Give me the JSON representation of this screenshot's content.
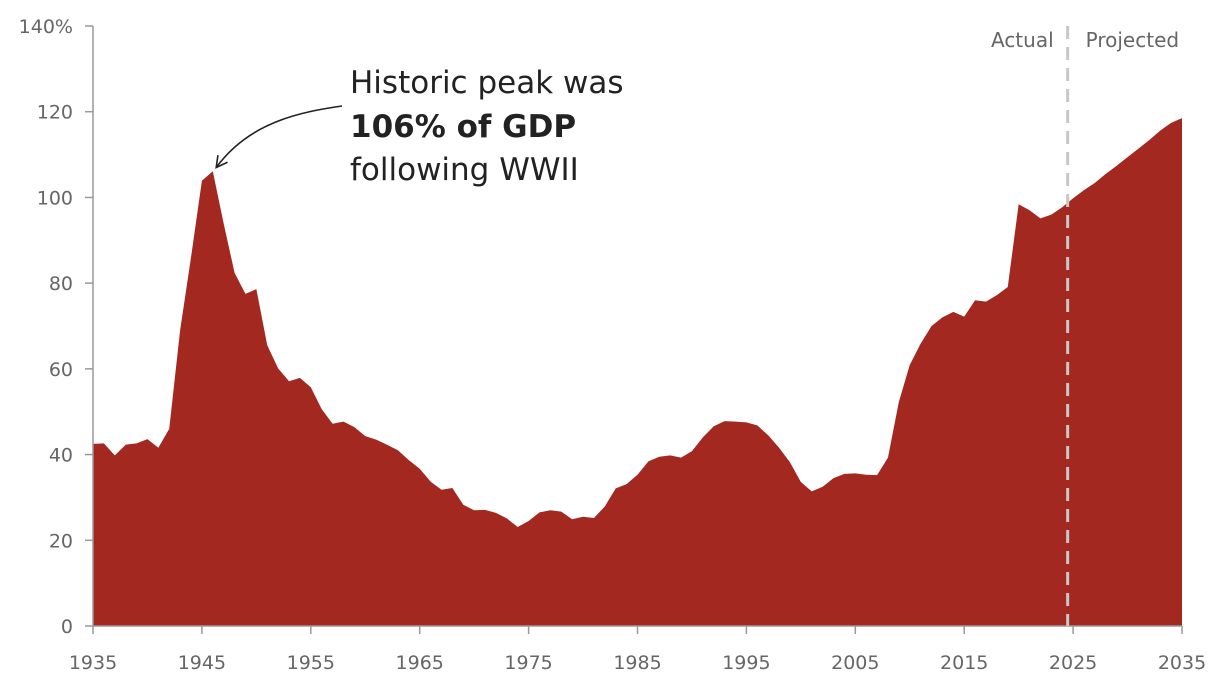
{
  "chart_data": {
    "type": "area",
    "title": "",
    "xlabel": "",
    "ylabel": "",
    "xlim": [
      1935,
      2035
    ],
    "ylim": [
      0,
      140
    ],
    "x_ticks": [
      "1935",
      "1945",
      "1955",
      "1965",
      "1975",
      "1985",
      "1995",
      "2005",
      "2015",
      "2025",
      "2035"
    ],
    "y_ticks": [
      {
        "value": 0,
        "label": "0"
      },
      {
        "value": 20,
        "label": "20"
      },
      {
        "value": 40,
        "label": "40"
      },
      {
        "value": 60,
        "label": "60"
      },
      {
        "value": 80,
        "label": "80"
      },
      {
        "value": 100,
        "label": "100"
      },
      {
        "value": 120,
        "label": "120"
      },
      {
        "value": 140,
        "label": "140%"
      }
    ],
    "grid": false,
    "fill_color": "#a32820",
    "divider": {
      "x": 2024.5,
      "left_label": "Actual",
      "right_label": "Projected"
    },
    "annotation": {
      "line1": "Historic peak was",
      "line2": "106% of GDP",
      "line3": "following WWII",
      "highlight_color": "#a32820",
      "target": {
        "x": 1946,
        "y": 106
      }
    },
    "series": [
      {
        "x": [
          1935,
          1936,
          1937,
          1938,
          1939,
          1940,
          1941,
          1942,
          1943,
          1944,
          1945,
          1946,
          1947,
          1948,
          1949,
          1950,
          1951,
          1952,
          1953,
          1954,
          1955,
          1956,
          1957,
          1958,
          1959,
          1960,
          1961,
          1962,
          1963,
          1964,
          1965,
          1966,
          1967,
          1968,
          1969,
          1970,
          1971,
          1972,
          1973,
          1974,
          1975,
          1976,
          1977,
          1978,
          1979,
          1980,
          1981,
          1982,
          1983,
          1984,
          1985,
          1986,
          1987,
          1988,
          1989,
          1990,
          1991,
          1992,
          1993,
          1994,
          1995,
          1996,
          1997,
          1998,
          1999,
          2000,
          2001,
          2002,
          2003,
          2004,
          2005,
          2006,
          2007,
          2008,
          2009,
          2010,
          2011,
          2012,
          2013,
          2014,
          2015,
          2016,
          2017,
          2018,
          2019,
          2020,
          2021,
          2022,
          2023,
          2024,
          2025,
          2026,
          2027,
          2028,
          2029,
          2030,
          2031,
          2032,
          2033,
          2034,
          2035
        ],
        "values": [
          42.5,
          42.6,
          39.8,
          42.3,
          42.6,
          43.6,
          41.6,
          46.0,
          69.0,
          86.0,
          103.9,
          106.1,
          93.9,
          82.4,
          77.5,
          78.6,
          65.5,
          60.1,
          57.1,
          57.9,
          55.7,
          50.6,
          47.2,
          47.7,
          46.4,
          44.3,
          43.5,
          42.3,
          41.0,
          38.7,
          36.7,
          33.7,
          31.8,
          32.2,
          28.3,
          27.0,
          27.1,
          26.4,
          25.1,
          23.1,
          24.5,
          26.5,
          27.0,
          26.7,
          24.9,
          25.5,
          25.2,
          27.9,
          32.1,
          33.1,
          35.3,
          38.4,
          39.5,
          39.8,
          39.3,
          40.8,
          44.0,
          46.6,
          47.8,
          47.7,
          47.5,
          46.8,
          44.5,
          41.6,
          38.2,
          33.6,
          31.4,
          32.5,
          34.5,
          35.5,
          35.6,
          35.3,
          35.2,
          39.3,
          52.3,
          60.9,
          65.9,
          70.0,
          72.0,
          73.3,
          72.2,
          76.0,
          75.7,
          77.2,
          79.1,
          98.4,
          97.0,
          95.1,
          96.0,
          97.7,
          99.8,
          101.7,
          103.4,
          105.5,
          107.4,
          109.4,
          111.4,
          113.4,
          115.6,
          117.4,
          118.5
        ]
      }
    ]
  }
}
